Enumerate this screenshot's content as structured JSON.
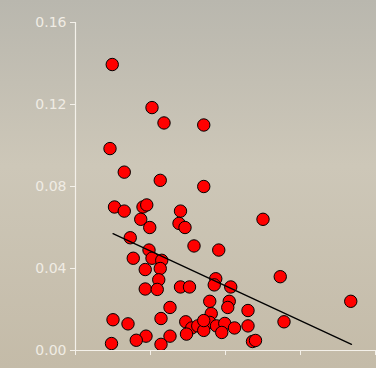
{
  "chart_data": {
    "type": "scatter",
    "tick_labels": "y",
    "xlim": [
      0,
      4
    ],
    "xticks": [
      0,
      1,
      2,
      3,
      4
    ],
    "ylim": [
      0,
      0.16
    ],
    "yticks": [
      {
        "value": 0,
        "label": "0.00"
      },
      0.04,
      0.08,
      0.12,
      0.16
    ],
    "series": [
      {
        "type": "scatter",
        "color": "#ff0000",
        "marker": "circle",
        "x": [
          0.49,
          0.46,
          1.02,
          1.18,
          1.71,
          0.65,
          1.13,
          1.71,
          0.52,
          0.65,
          0.9,
          0.95,
          0.87,
          0.99,
          1.4,
          1.38,
          1.46,
          2.5,
          0.73,
          0.98,
          1.02,
          0.77,
          1.15,
          1.58,
          1.91,
          0.93,
          1.13,
          1.11,
          0.93,
          1.09,
          1.4,
          1.52,
          1.87,
          1.85,
          2.07,
          2.73,
          1.26,
          1.79,
          2.05,
          2.03,
          1.81,
          2.3,
          0.5,
          0.7,
          1.47,
          1.55,
          1.63,
          1.79,
          1.88,
          1.99,
          2.12,
          2.78,
          2.3,
          0.94,
          1.14,
          1.26,
          1.48,
          0.81,
          0.48,
          1.71,
          1.95,
          2.36,
          2.4,
          3.67,
          1.14,
          1.71
        ],
        "values": [
          0.1395,
          0.0985,
          0.1185,
          0.111,
          0.11,
          0.087,
          0.083,
          0.08,
          0.07,
          0.068,
          0.07,
          0.071,
          0.064,
          0.06,
          0.068,
          0.062,
          0.06,
          0.064,
          0.055,
          0.049,
          0.045,
          0.045,
          0.044,
          0.051,
          0.049,
          0.0395,
          0.04,
          0.0345,
          0.03,
          0.0298,
          0.031,
          0.031,
          0.035,
          0.032,
          0.031,
          0.036,
          0.021,
          0.024,
          0.024,
          0.021,
          0.018,
          0.0195,
          0.015,
          0.013,
          0.014,
          0.011,
          0.012,
          0.0137,
          0.012,
          0.0132,
          0.011,
          0.014,
          0.012,
          0.007,
          0.003,
          0.007,
          0.008,
          0.005,
          0.0034,
          0.0098,
          0.0088,
          0.0044,
          0.0049,
          0.024,
          0.0156,
          0.0146
        ]
      },
      {
        "type": "line",
        "color": "#000000",
        "line_style": "solid",
        "x": [
          0.5,
          3.68
        ],
        "values": [
          0.057,
          0.003
        ]
      }
    ]
  }
}
